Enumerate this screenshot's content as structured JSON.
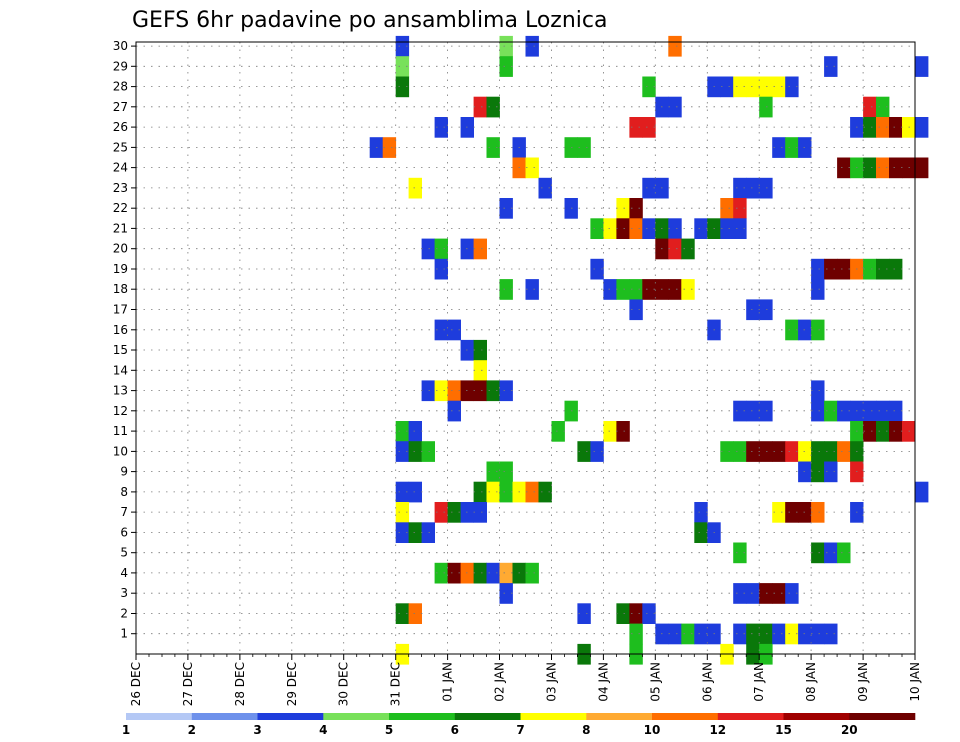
{
  "chart_data": {
    "type": "heatmap",
    "title": "GEFS 6hr padavine po ansamblima Loznica",
    "xlabel": "",
    "ylabel": "",
    "x_tick_labels": [
      "26 DEC",
      "27 DEC",
      "28 DEC",
      "29 DEC",
      "30 DEC",
      "31 DEC",
      "01 JAN",
      "02 JAN",
      "03 JAN",
      "04 JAN",
      "05 JAN",
      "06 JAN",
      "07 JAN",
      "08 JAN",
      "09 JAN",
      "10 JAN"
    ],
    "x_range_days": [
      0,
      15
    ],
    "steps_per_day": 4,
    "y_tick_labels": [
      "1",
      "2",
      "3",
      "4",
      "5",
      "6",
      "7",
      "8",
      "9",
      "10",
      "11",
      "12",
      "13",
      "14",
      "15",
      "16",
      "17",
      "18",
      "19",
      "20",
      "21",
      "22",
      "23",
      "24",
      "25",
      "26",
      "27",
      "28",
      "29",
      "30"
    ],
    "ylim": [
      0,
      30
    ],
    "grid": true,
    "legend_levels": [
      {
        "label": "1",
        "color": "#b4c8f5"
      },
      {
        "label": "2",
        "color": "#6e91eb"
      },
      {
        "label": "3",
        "color": "#1e3cdc"
      },
      {
        "label": "4",
        "color": "#78e15a"
      },
      {
        "label": "5",
        "color": "#1ebe1e"
      },
      {
        "label": "6",
        "color": "#0a780a"
      },
      {
        "label": "7",
        "color": "#ffff00"
      },
      {
        "label": "8",
        "color": "#ffaa32"
      },
      {
        "label": "10",
        "color": "#ff6e00"
      },
      {
        "label": "12",
        "color": "#e11e1e"
      },
      {
        "label": "15",
        "color": "#a00000"
      },
      {
        "label": "20",
        "color": "#6e0000"
      }
    ],
    "legend_tail_label": "",
    "cells": [
      [
        20,
        30,
        3
      ],
      [
        28,
        30,
        4
      ],
      [
        30,
        30,
        3
      ],
      [
        41,
        30,
        9
      ],
      [
        20,
        29,
        4
      ],
      [
        28,
        29,
        5
      ],
      [
        53,
        29,
        3
      ],
      [
        60,
        29,
        3
      ],
      [
        20,
        28,
        6
      ],
      [
        39,
        28,
        5
      ],
      [
        44,
        28,
        3
      ],
      [
        45,
        28,
        3
      ],
      [
        46,
        28,
        7
      ],
      [
        47,
        28,
        7
      ],
      [
        48,
        28,
        7
      ],
      [
        49,
        28,
        7
      ],
      [
        50,
        28,
        3
      ],
      [
        26,
        27,
        10
      ],
      [
        27,
        27,
        6
      ],
      [
        40,
        27,
        3
      ],
      [
        41,
        27,
        3
      ],
      [
        48,
        27,
        5
      ],
      [
        56,
        27,
        10
      ],
      [
        57,
        27,
        5
      ],
      [
        23,
        26,
        3
      ],
      [
        25,
        26,
        3
      ],
      [
        38,
        26,
        10
      ],
      [
        39,
        26,
        10
      ],
      [
        55,
        26,
        3
      ],
      [
        56,
        26,
        6
      ],
      [
        57,
        26,
        9
      ],
      [
        58,
        26,
        13
      ],
      [
        59,
        26,
        7
      ],
      [
        60,
        26,
        3
      ],
      [
        18,
        25,
        3
      ],
      [
        19,
        25,
        9
      ],
      [
        27,
        25,
        5
      ],
      [
        29,
        25,
        3
      ],
      [
        33,
        25,
        5
      ],
      [
        34,
        25,
        5
      ],
      [
        49,
        25,
        3
      ],
      [
        50,
        25,
        5
      ],
      [
        51,
        25,
        3
      ],
      [
        29,
        24,
        9
      ],
      [
        30,
        24,
        7
      ],
      [
        54,
        24,
        15
      ],
      [
        55,
        24,
        5
      ],
      [
        56,
        24,
        6
      ],
      [
        57,
        24,
        9
      ],
      [
        58,
        24,
        18
      ],
      [
        59,
        24,
        16
      ],
      [
        60,
        24,
        15
      ],
      [
        21,
        23,
        7
      ],
      [
        31,
        23,
        3
      ],
      [
        39,
        23,
        3
      ],
      [
        40,
        23,
        3
      ],
      [
        46,
        23,
        3
      ],
      [
        47,
        23,
        3
      ],
      [
        48,
        23,
        3
      ],
      [
        28,
        22,
        3
      ],
      [
        33,
        22,
        3
      ],
      [
        37,
        22,
        7
      ],
      [
        38,
        22,
        13
      ],
      [
        45,
        22,
        9
      ],
      [
        46,
        22,
        10
      ],
      [
        35,
        21,
        5
      ],
      [
        36,
        21,
        7
      ],
      [
        37,
        21,
        14
      ],
      [
        38,
        21,
        9
      ],
      [
        39,
        21,
        3
      ],
      [
        40,
        21,
        6
      ],
      [
        41,
        21,
        3
      ],
      [
        43,
        21,
        3
      ],
      [
        44,
        21,
        6
      ],
      [
        45,
        21,
        3
      ],
      [
        46,
        21,
        3
      ],
      [
        22,
        20,
        3
      ],
      [
        23,
        20,
        5
      ],
      [
        25,
        20,
        3
      ],
      [
        26,
        20,
        9
      ],
      [
        40,
        20,
        13
      ],
      [
        41,
        20,
        10
      ],
      [
        42,
        20,
        6
      ],
      [
        23,
        19,
        3
      ],
      [
        35,
        19,
        3
      ],
      [
        52,
        19,
        3
      ],
      [
        53,
        19,
        14
      ],
      [
        54,
        19,
        14
      ],
      [
        55,
        19,
        9
      ],
      [
        56,
        19,
        5
      ],
      [
        57,
        19,
        6
      ],
      [
        58,
        19,
        6
      ],
      [
        28,
        18,
        5
      ],
      [
        30,
        18,
        3
      ],
      [
        36,
        18,
        3
      ],
      [
        37,
        18,
        5
      ],
      [
        38,
        18,
        5
      ],
      [
        39,
        18,
        15
      ],
      [
        40,
        18,
        16
      ],
      [
        41,
        18,
        16
      ],
      [
        42,
        18,
        7
      ],
      [
        52,
        18,
        3
      ],
      [
        38,
        17,
        3
      ],
      [
        47,
        17,
        3
      ],
      [
        48,
        17,
        3
      ],
      [
        23,
        16,
        3
      ],
      [
        24,
        16,
        3
      ],
      [
        44,
        16,
        3
      ],
      [
        50,
        16,
        5
      ],
      [
        51,
        16,
        3
      ],
      [
        52,
        16,
        5
      ],
      [
        25,
        15,
        3
      ],
      [
        26,
        15,
        6
      ],
      [
        26,
        14,
        7
      ],
      [
        22,
        13,
        3
      ],
      [
        23,
        13,
        7
      ],
      [
        24,
        13,
        9
      ],
      [
        25,
        13,
        14
      ],
      [
        26,
        13,
        14
      ],
      [
        27,
        13,
        6
      ],
      [
        28,
        13,
        3
      ],
      [
        52,
        13,
        3
      ],
      [
        24,
        12,
        3
      ],
      [
        33,
        12,
        5
      ],
      [
        46,
        12,
        3
      ],
      [
        47,
        12,
        3
      ],
      [
        48,
        12,
        3
      ],
      [
        52,
        12,
        3
      ],
      [
        53,
        12,
        5
      ],
      [
        54,
        12,
        3
      ],
      [
        55,
        12,
        3
      ],
      [
        56,
        12,
        3
      ],
      [
        57,
        12,
        3
      ],
      [
        58,
        12,
        3
      ],
      [
        20,
        11,
        5
      ],
      [
        21,
        11,
        3
      ],
      [
        32,
        11,
        5
      ],
      [
        36,
        11,
        7
      ],
      [
        37,
        11,
        13
      ],
      [
        55,
        11,
        5
      ],
      [
        56,
        11,
        14
      ],
      [
        57,
        11,
        6
      ],
      [
        58,
        11,
        14
      ],
      [
        59,
        11,
        10
      ],
      [
        20,
        10,
        3
      ],
      [
        21,
        10,
        6
      ],
      [
        22,
        10,
        5
      ],
      [
        34,
        10,
        6
      ],
      [
        35,
        10,
        3
      ],
      [
        45,
        10,
        5
      ],
      [
        46,
        10,
        5
      ],
      [
        47,
        10,
        14
      ],
      [
        48,
        10,
        14
      ],
      [
        49,
        10,
        14
      ],
      [
        50,
        10,
        10
      ],
      [
        51,
        10,
        7
      ],
      [
        52,
        10,
        6
      ],
      [
        53,
        10,
        6
      ],
      [
        54,
        10,
        9
      ],
      [
        55,
        10,
        6
      ],
      [
        27,
        9,
        5
      ],
      [
        28,
        9,
        5
      ],
      [
        51,
        9,
        3
      ],
      [
        52,
        9,
        6
      ],
      [
        53,
        9,
        3
      ],
      [
        55,
        9,
        10
      ],
      [
        20,
        8,
        3
      ],
      [
        21,
        8,
        3
      ],
      [
        26,
        8,
        6
      ],
      [
        27,
        8,
        7
      ],
      [
        28,
        8,
        5
      ],
      [
        29,
        8,
        7
      ],
      [
        30,
        8,
        9
      ],
      [
        31,
        8,
        6
      ],
      [
        60,
        8,
        3
      ],
      [
        20,
        7,
        7
      ],
      [
        23,
        7,
        10
      ],
      [
        24,
        7,
        6
      ],
      [
        25,
        7,
        3
      ],
      [
        26,
        7,
        3
      ],
      [
        43,
        7,
        3
      ],
      [
        49,
        7,
        7
      ],
      [
        50,
        7,
        15
      ],
      [
        51,
        7,
        14
      ],
      [
        52,
        7,
        9
      ],
      [
        55,
        7,
        3
      ],
      [
        20,
        6,
        3
      ],
      [
        21,
        6,
        6
      ],
      [
        22,
        6,
        3
      ],
      [
        43,
        6,
        6
      ],
      [
        44,
        6,
        3
      ],
      [
        46,
        5,
        5
      ],
      [
        52,
        5,
        6
      ],
      [
        53,
        5,
        3
      ],
      [
        54,
        5,
        5
      ],
      [
        23,
        4,
        5
      ],
      [
        24,
        4,
        13
      ],
      [
        25,
        4,
        9
      ],
      [
        26,
        4,
        6
      ],
      [
        27,
        4,
        3
      ],
      [
        28,
        4,
        8
      ],
      [
        29,
        4,
        6
      ],
      [
        30,
        4,
        5
      ],
      [
        28,
        3,
        3
      ],
      [
        46,
        3,
        3
      ],
      [
        47,
        3,
        3
      ],
      [
        48,
        3,
        15
      ],
      [
        49,
        3,
        14
      ],
      [
        50,
        3,
        3
      ],
      [
        20,
        2,
        6
      ],
      [
        21,
        2,
        9
      ],
      [
        34,
        2,
        3
      ],
      [
        37,
        2,
        6
      ],
      [
        38,
        2,
        17
      ],
      [
        39,
        2,
        3
      ],
      [
        38,
        1,
        5
      ],
      [
        40,
        1,
        3
      ],
      [
        41,
        1,
        3
      ],
      [
        42,
        1,
        5
      ],
      [
        43,
        1,
        3
      ],
      [
        44,
        1,
        3
      ],
      [
        46,
        1,
        3
      ],
      [
        47,
        1,
        6
      ],
      [
        48,
        1,
        6
      ],
      [
        49,
        1,
        3
      ],
      [
        50,
        1,
        7
      ],
      [
        51,
        1,
        3
      ],
      [
        52,
        1,
        3
      ],
      [
        53,
        1,
        3
      ],
      [
        20,
        0,
        7
      ],
      [
        34,
        0,
        6
      ],
      [
        38,
        0,
        5
      ],
      [
        45,
        0,
        7
      ],
      [
        47,
        0,
        6
      ],
      [
        48,
        0,
        5
      ]
    ]
  }
}
